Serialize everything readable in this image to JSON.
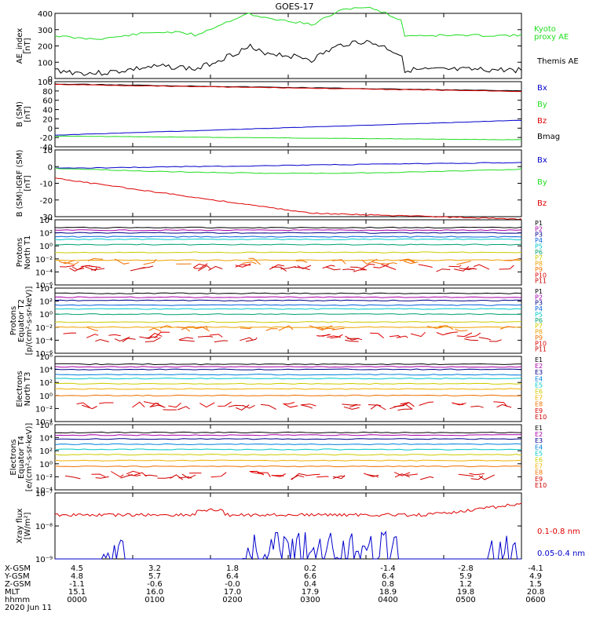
{
  "title": "GOES-17",
  "date_label": "2020 Jun 11",
  "colors": {
    "black": "#000000",
    "green": "#22dd22",
    "blue": "#0000cc",
    "red": "#dd0000",
    "orange": "#f08000",
    "yellow": "#cccc00",
    "cyan": "#00c8c8",
    "teal": "#00a070",
    "navy": "#00008b",
    "magenta": "#aa00aa"
  },
  "footer": {
    "rows": [
      {
        "label": "X-GSM",
        "values": [
          "4.5",
          "3.2",
          "1.8",
          "0.2",
          "-1.4",
          "-2.8",
          "-4.1"
        ]
      },
      {
        "label": "Y-GSM",
        "values": [
          "4.8",
          "5.7",
          "6.4",
          "6.6",
          "6.4",
          "5.9",
          "4.9"
        ]
      },
      {
        "label": "Z-GSM",
        "values": [
          "-1.1",
          "-0.6",
          "-0.0",
          "0.4",
          "0.8",
          "1.2",
          "1.5"
        ]
      },
      {
        "label": "MLT",
        "values": [
          "15.1",
          "16.0",
          "17.0",
          "17.9",
          "18.9",
          "19.8",
          "20.8"
        ]
      },
      {
        "label": "hhmm",
        "values": [
          "0000",
          "0100",
          "0200",
          "0300",
          "0400",
          "0500",
          "0600"
        ]
      }
    ]
  },
  "chart_data": [
    {
      "type": "line",
      "ylabel": [
        "AE_index",
        "[nT]"
      ],
      "ylim": [
        0,
        400
      ],
      "yticks": [
        "0",
        "100",
        "200",
        "300",
        "400"
      ],
      "series": [
        {
          "name": "Kyoto proxy AE",
          "legend": [
            "Kyoto",
            "proxy AE"
          ],
          "color": "green"
        },
        {
          "name": "Themis AE",
          "legend": [
            "Themis AE"
          ],
          "color": "black"
        }
      ]
    },
    {
      "type": "line",
      "ylabel": [
        "B (SM)",
        "[nT]"
      ],
      "ylim": [
        -40,
        100
      ],
      "yticks": [
        "-40",
        "-20",
        "0",
        "20",
        "40",
        "60",
        "80",
        "100"
      ],
      "series": [
        {
          "name": "Bx",
          "color": "blue"
        },
        {
          "name": "By",
          "color": "green"
        },
        {
          "name": "Bz",
          "color": "red"
        },
        {
          "name": "Bmag",
          "color": "black"
        }
      ]
    },
    {
      "type": "line",
      "ylabel": [
        "B (SM)-IGRF (SM)",
        "[nT]"
      ],
      "ylim": [
        -30,
        10
      ],
      "yticks": [
        "-30",
        "-20",
        "-10",
        "0",
        "10"
      ],
      "series": [
        {
          "name": "Bx",
          "color": "blue"
        },
        {
          "name": "By",
          "color": "green"
        },
        {
          "name": "Bz",
          "color": "red"
        }
      ]
    },
    {
      "type": "line",
      "ylabel": [
        "Protons",
        "North T1"
      ],
      "yscale": "log",
      "yticks": [
        "10⁻⁶",
        "10⁻⁴",
        "10⁻²",
        "10⁰",
        "10²",
        "10⁴"
      ],
      "series": [
        {
          "name": "P1"
        },
        {
          "name": "P2"
        },
        {
          "name": "P3"
        },
        {
          "name": "P4"
        },
        {
          "name": "P5"
        },
        {
          "name": "P6"
        },
        {
          "name": "P7"
        },
        {
          "name": "P8"
        },
        {
          "name": "P9"
        },
        {
          "name": "P10"
        },
        {
          "name": "P11"
        }
      ]
    },
    {
      "type": "line",
      "ylabel": [
        "Protons",
        "Equator T2",
        "[p/(cm²-s-sr-keV)]"
      ],
      "yscale": "log",
      "yticks": [
        "10⁻⁶",
        "10⁻⁴",
        "10⁻²",
        "10⁰",
        "10²",
        "10⁴"
      ],
      "series": [
        {
          "name": "P1"
        },
        {
          "name": "P2"
        },
        {
          "name": "P3"
        },
        {
          "name": "P4"
        },
        {
          "name": "P5"
        },
        {
          "name": "P6"
        },
        {
          "name": "P7"
        },
        {
          "name": "P8"
        },
        {
          "name": "P9"
        },
        {
          "name": "P10"
        },
        {
          "name": "P11"
        }
      ]
    },
    {
      "type": "line",
      "ylabel": [
        "Electrons",
        "North T3"
      ],
      "yscale": "log",
      "yticks": [
        "10⁻⁴",
        "10⁻²",
        "10⁰",
        "10²",
        "10⁴",
        "10⁶"
      ],
      "series": [
        {
          "name": "E1"
        },
        {
          "name": "E2"
        },
        {
          "name": "E3"
        },
        {
          "name": "E4"
        },
        {
          "name": "E5"
        },
        {
          "name": "E6"
        },
        {
          "name": "E7"
        },
        {
          "name": "E8"
        },
        {
          "name": "E9"
        },
        {
          "name": "E10"
        }
      ]
    },
    {
      "type": "line",
      "ylabel": [
        "Electrons",
        "Equator T4",
        "[e/(cm²-s-sr-keV)]"
      ],
      "yscale": "log",
      "yticks": [
        "10⁻⁴",
        "10⁻²",
        "10⁰",
        "10²",
        "10⁴",
        "10⁶"
      ],
      "series": [
        {
          "name": "E1"
        },
        {
          "name": "E2"
        },
        {
          "name": "E3"
        },
        {
          "name": "E4"
        },
        {
          "name": "E5"
        },
        {
          "name": "E6"
        },
        {
          "name": "E7"
        },
        {
          "name": "E8"
        },
        {
          "name": "E9"
        },
        {
          "name": "E10"
        }
      ]
    },
    {
      "type": "line",
      "ylabel": [
        "Xray flux",
        "[W/m²]"
      ],
      "yscale": "log",
      "yticks": [
        "10⁻⁹",
        "10⁻⁸",
        "10⁻⁷"
      ],
      "series": [
        {
          "name": "0.1-0.8 nm",
          "color": "red"
        },
        {
          "name": "0.05-0.4 nm",
          "color": "blue"
        }
      ]
    }
  ]
}
